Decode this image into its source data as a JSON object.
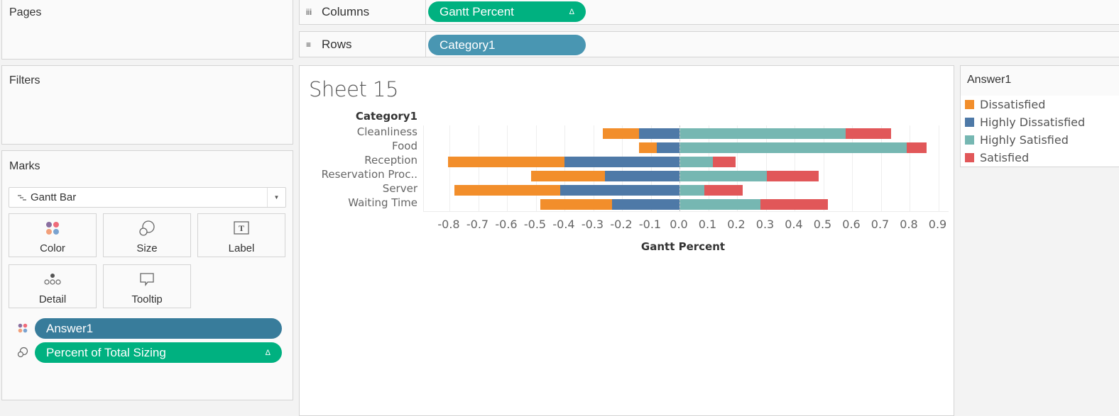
{
  "panels": {
    "pages_title": "Pages",
    "filters_title": "Filters",
    "marks_title": "Marks"
  },
  "shelves": {
    "columns": {
      "label": "Columns",
      "icon": "columns-icon",
      "pill": "Gantt Percent",
      "pill_delta": "Δ",
      "pill_color": "#00b180"
    },
    "rows": {
      "label": "Rows",
      "icon": "rows-icon",
      "pill": "Category1",
      "pill_color": "#4996b2"
    }
  },
  "marks": {
    "type": "Gantt Bar",
    "buttons": [
      {
        "label": "Color",
        "icon": "color-dots-icon"
      },
      {
        "label": "Size",
        "icon": "size-circles-icon"
      },
      {
        "label": "Label",
        "icon": "text-label-icon"
      },
      {
        "label": "Detail",
        "icon": "detail-dots-icon"
      },
      {
        "label": "Tooltip",
        "icon": "tooltip-bubble-icon"
      }
    ],
    "fields": [
      {
        "label": "Answer1",
        "icon": "color-dots-icon",
        "color": "#387c9b"
      },
      {
        "label": "Percent of Total Sizing",
        "icon": "size-circles-icon",
        "delta": "Δ",
        "color": "#00b180"
      }
    ]
  },
  "sheet": {
    "title": "Sheet 15"
  },
  "legend": {
    "title": "Answer1",
    "items": [
      {
        "label": "Dissatisfied",
        "color": "#f28e2b"
      },
      {
        "label": "Highly Dissatisfied",
        "color": "#4e79a7"
      },
      {
        "label": "Highly Satisfied",
        "color": "#76b7b2"
      },
      {
        "label": "Satisfied",
        "color": "#e15759"
      }
    ]
  },
  "chart_data": {
    "type": "bar",
    "subtype": "diverging stacked gantt bar",
    "title": "Sheet 15",
    "xlabel": "Gantt Percent",
    "ylabel": "Category1",
    "xlim": [
      -0.85,
      0.95
    ],
    "x_ticks": [
      "-0.8",
      "-0.7",
      "-0.6",
      "-0.5",
      "-0.4",
      "-0.3",
      "-0.2",
      "-0.1",
      "0.0",
      "0.1",
      "0.2",
      "0.3",
      "0.4",
      "0.5",
      "0.6",
      "0.7",
      "0.8",
      "0.9"
    ],
    "grid": true,
    "legend_position": "right",
    "categories": [
      "Cleanliness",
      "Food",
      "Reception",
      "Reservation Proc..",
      "Server",
      "Waiting Time"
    ],
    "series": [
      {
        "name": "Highly Dissatisfied",
        "color": "#4e79a7",
        "side": "negative",
        "values": [
          0.141,
          0.08,
          0.401,
          0.26,
          0.416,
          0.235
        ]
      },
      {
        "name": "Dissatisfied",
        "color": "#f28e2b",
        "side": "negative",
        "values": [
          0.126,
          0.061,
          0.405,
          0.257,
          0.367,
          0.25
        ]
      },
      {
        "name": "Highly Satisfied",
        "color": "#76b7b2",
        "side": "positive",
        "values": [
          0.578,
          0.79,
          0.116,
          0.303,
          0.086,
          0.281
        ]
      },
      {
        "name": "Satisfied",
        "color": "#e15759",
        "side": "positive",
        "values": [
          0.158,
          0.069,
          0.079,
          0.18,
          0.133,
          0.234
        ]
      }
    ]
  }
}
